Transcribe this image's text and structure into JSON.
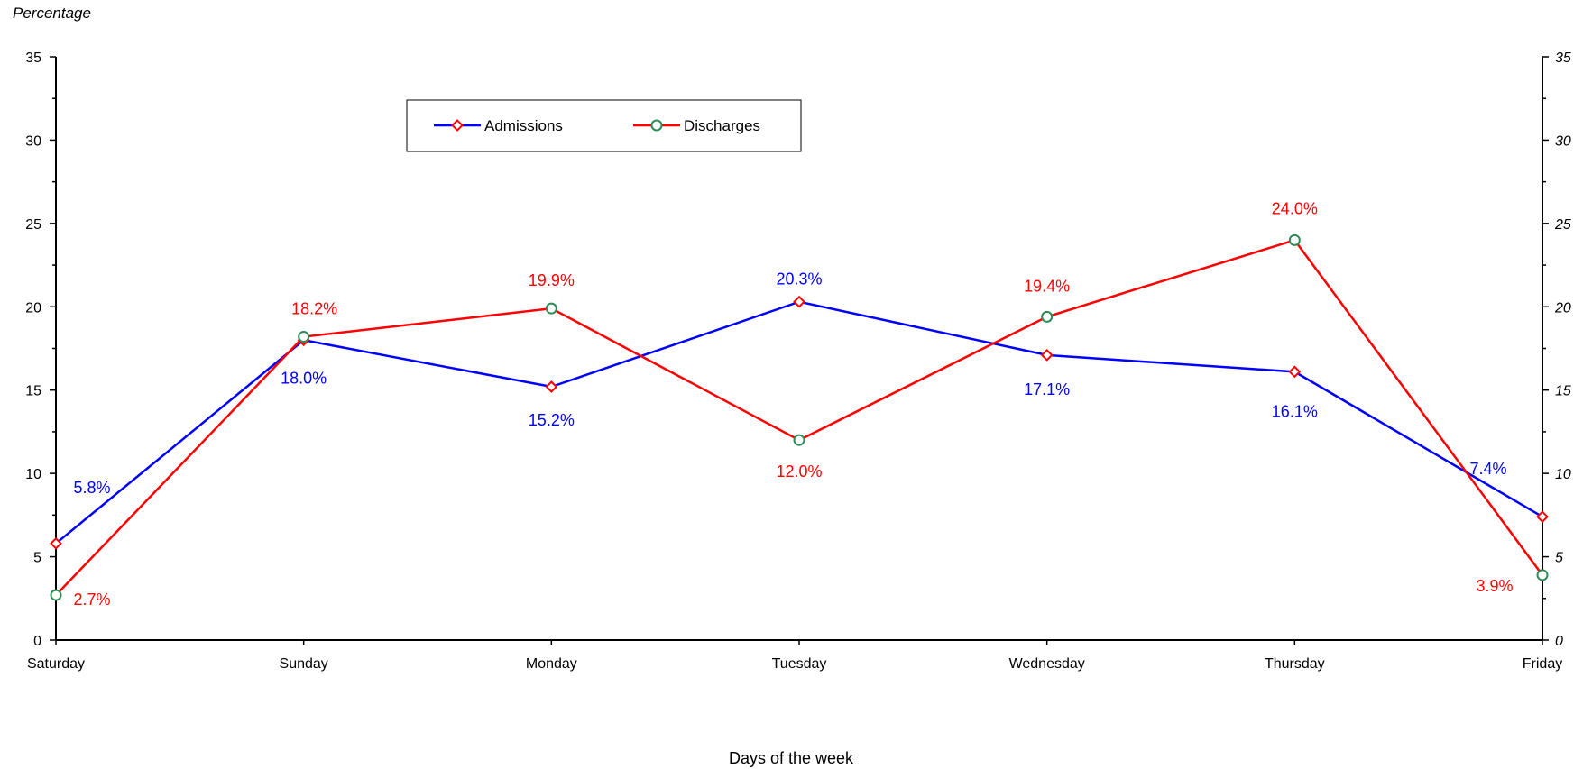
{
  "chart_data": {
    "type": "line",
    "title": "",
    "ylabel": "Percentage",
    "xlabel": "Days of the week",
    "ylim": [
      0,
      35
    ],
    "yticks": [
      0,
      5,
      10,
      15,
      20,
      25,
      30,
      35
    ],
    "categories": [
      "Saturday",
      "Sunday",
      "Monday",
      "Tuesday",
      "Wednesday",
      "Thursday",
      "Friday"
    ],
    "legend_position": "top-center",
    "grid": false,
    "series": [
      {
        "name": "Admissions",
        "color": "#0000ff",
        "marker": "diamond",
        "marker_color": "#ff0000",
        "values": [
          5.8,
          18.0,
          15.2,
          20.3,
          17.1,
          16.1,
          7.4
        ],
        "labels": [
          "5.8%",
          "18.0%",
          "15.2%",
          "20.3%",
          "17.1%",
          "16.1%",
          "7.4%"
        ]
      },
      {
        "name": "Discharges",
        "color": "#ff0000",
        "marker": "circle",
        "marker_color": "#2e8b57",
        "values": [
          2.7,
          18.2,
          19.9,
          12.0,
          19.4,
          24.0,
          3.9
        ],
        "labels": [
          "2.7%",
          "18.2%",
          "19.9%",
          "12.0%",
          "19.4%",
          "24.0%",
          "3.9%"
        ]
      }
    ]
  }
}
